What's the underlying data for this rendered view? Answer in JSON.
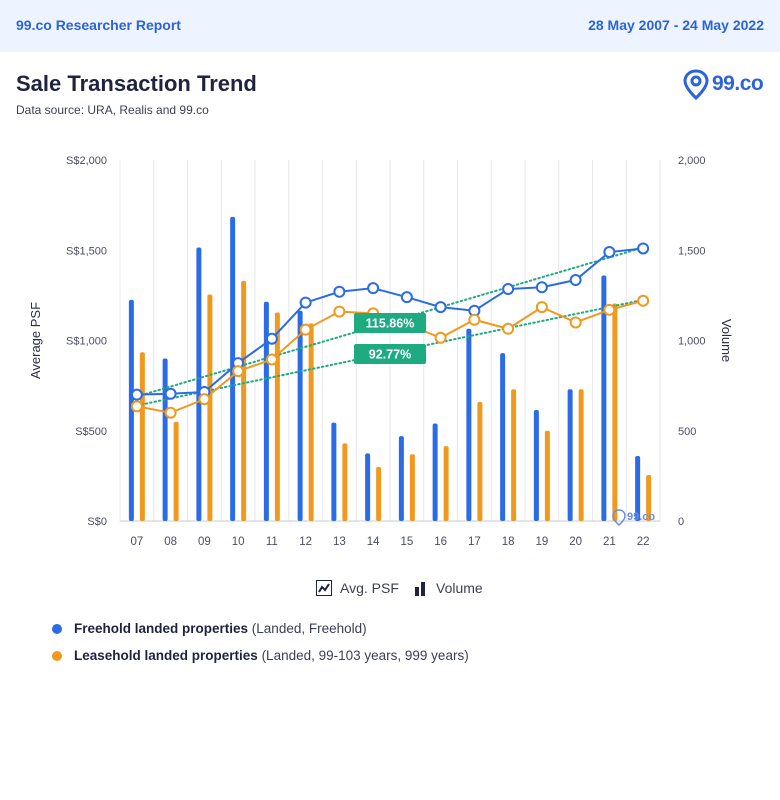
{
  "header": {
    "report_title": "99.co Researcher Report",
    "date_range": "28 May 2007 - 24 May 2022"
  },
  "page": {
    "title": "Sale Transaction Trend",
    "subtitle": "Data source: URA, Realis and 99.co",
    "logo_text": "99.co",
    "watermark_text": "99.co"
  },
  "colors": {
    "freehold": "#2b6be6",
    "leasehold": "#f0991f",
    "trend": "#1eab82",
    "badge": "#1eab82",
    "axis_text": "#4a4e63",
    "grid": "#e7e7ec"
  },
  "chart_data": {
    "type": "bar+line",
    "categories": [
      "07",
      "08",
      "09",
      "10",
      "11",
      "12",
      "13",
      "14",
      "15",
      "16",
      "17",
      "18",
      "19",
      "20",
      "21",
      "22"
    ],
    "left_axis": {
      "label": "Average PSF",
      "ticks": [
        "S$0",
        "S$500",
        "S$1,000",
        "S$1,500",
        "S$2,000"
      ],
      "range": [
        0,
        2000
      ]
    },
    "right_axis": {
      "label": "Volume",
      "ticks": [
        "0",
        "500",
        "1,000",
        "1,500",
        "2,000"
      ],
      "range": [
        0,
        2000
      ]
    },
    "volume_series": [
      {
        "name": "Freehold landed properties",
        "values": [
          1225,
          900,
          1515,
          1685,
          1215,
          1165,
          545,
          375,
          470,
          540,
          1065,
          930,
          615,
          730,
          1360,
          360
        ]
      },
      {
        "name": "Leasehold landed properties",
        "values": [
          935,
          550,
          1255,
          1330,
          1155,
          1095,
          430,
          300,
          370,
          415,
          660,
          730,
          500,
          730,
          1205,
          255
        ]
      }
    ],
    "psf_series": [
      {
        "name": "Freehold landed properties",
        "values": [
          700,
          705,
          715,
          875,
          1010,
          1210,
          1270,
          1290,
          1240,
          1185,
          1165,
          1285,
          1295,
          1335,
          1490,
          1510
        ]
      },
      {
        "name": "Leasehold landed properties",
        "values": [
          635,
          600,
          675,
          830,
          895,
          1060,
          1160,
          1150,
          1090,
          1015,
          1115,
          1065,
          1185,
          1100,
          1170,
          1220
        ]
      }
    ],
    "trend_lines": [
      {
        "name": "Freehold trend",
        "from": 690,
        "to": 1515,
        "label": "115.86%"
      },
      {
        "name": "Leasehold trend",
        "from": 640,
        "to": 1225,
        "label": "92.77%"
      }
    ],
    "toggles": [
      {
        "name": "Avg. PSF",
        "icon": "line-chart-icon"
      },
      {
        "name": "Volume",
        "icon": "bar-chart-icon"
      }
    ]
  },
  "legend": [
    {
      "name": "Freehold landed properties",
      "detail": "(Landed, Freehold)"
    },
    {
      "name": "Leasehold landed properties",
      "detail": "(Landed, 99-103 years, 999 years)"
    }
  ]
}
